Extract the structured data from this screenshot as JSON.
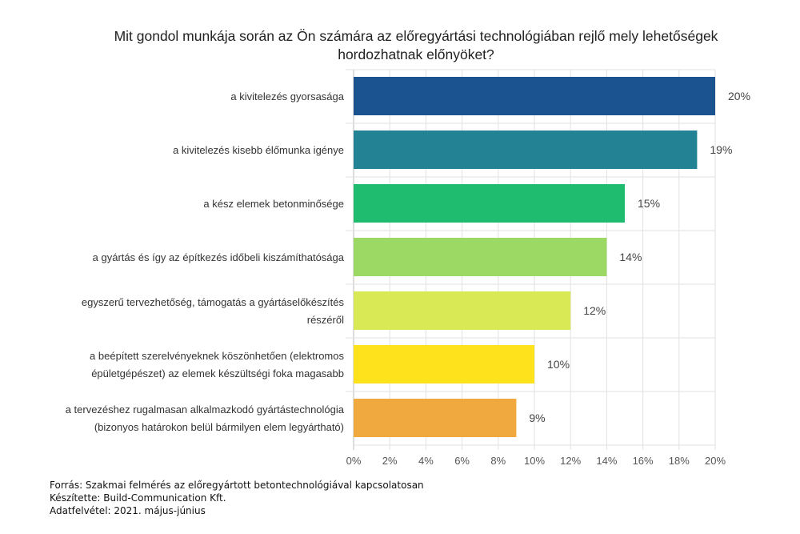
{
  "chart_data": {
    "type": "bar",
    "orientation": "horizontal",
    "title": "Mit gondol munkája során az Ön számára az előregyártási technológiában rejlő mely lehetőségek hordozhatnak előnyöket?",
    "title_lines": [
      "Mit gondol munkája során az Ön számára az előregyártási technológiában rejlő mely lehetőségek",
      "hordozhatnak előnyöket?"
    ],
    "categories": [
      [
        "a kivitelezés gyorsasága"
      ],
      [
        "a kivitelezés kisebb élőmunka igénye"
      ],
      [
        "a kész elemek betonminősége"
      ],
      [
        "a gyártás és így az építkezés időbeli kiszámíthatósága"
      ],
      [
        "egyszerű tervezhetőség, támogatás a gyártáselőkészítés",
        "részéről"
      ],
      [
        "a beépített szerelvényeknek köszönhetően (elektromos",
        "épületgépészet) az elemek készültségi foka magasabb"
      ],
      [
        "a tervezéshez rugalmasan alkalmazkodó gyártástechnológia",
        "(bizonyos határokon belül bármilyen elem legyártható)"
      ]
    ],
    "values": [
      20,
      19,
      15,
      14,
      12,
      10,
      9
    ],
    "data_labels": [
      "20%",
      "19%",
      "15%",
      "14%",
      "12%",
      "10%",
      "9%"
    ],
    "colors": [
      "#1b5391",
      "#238294",
      "#1fbb6e",
      "#9cd964",
      "#d9e855",
      "#fde21c",
      "#f0a93e"
    ],
    "xlim": [
      0,
      20
    ],
    "x_ticks": [
      "0%",
      "2%",
      "4%",
      "6%",
      "8%",
      "10%",
      "12%",
      "14%",
      "16%",
      "18%",
      "20%"
    ],
    "grid": true,
    "xlabel": "",
    "ylabel": ""
  },
  "footer": {
    "source": "Forrás: Szakmai felmérés az előregyártott betontechnológiával kapcsolatosan",
    "author": "Készítette: Build-Communication Kft.",
    "date": "Adatfelvétel: 2021. május-június"
  }
}
